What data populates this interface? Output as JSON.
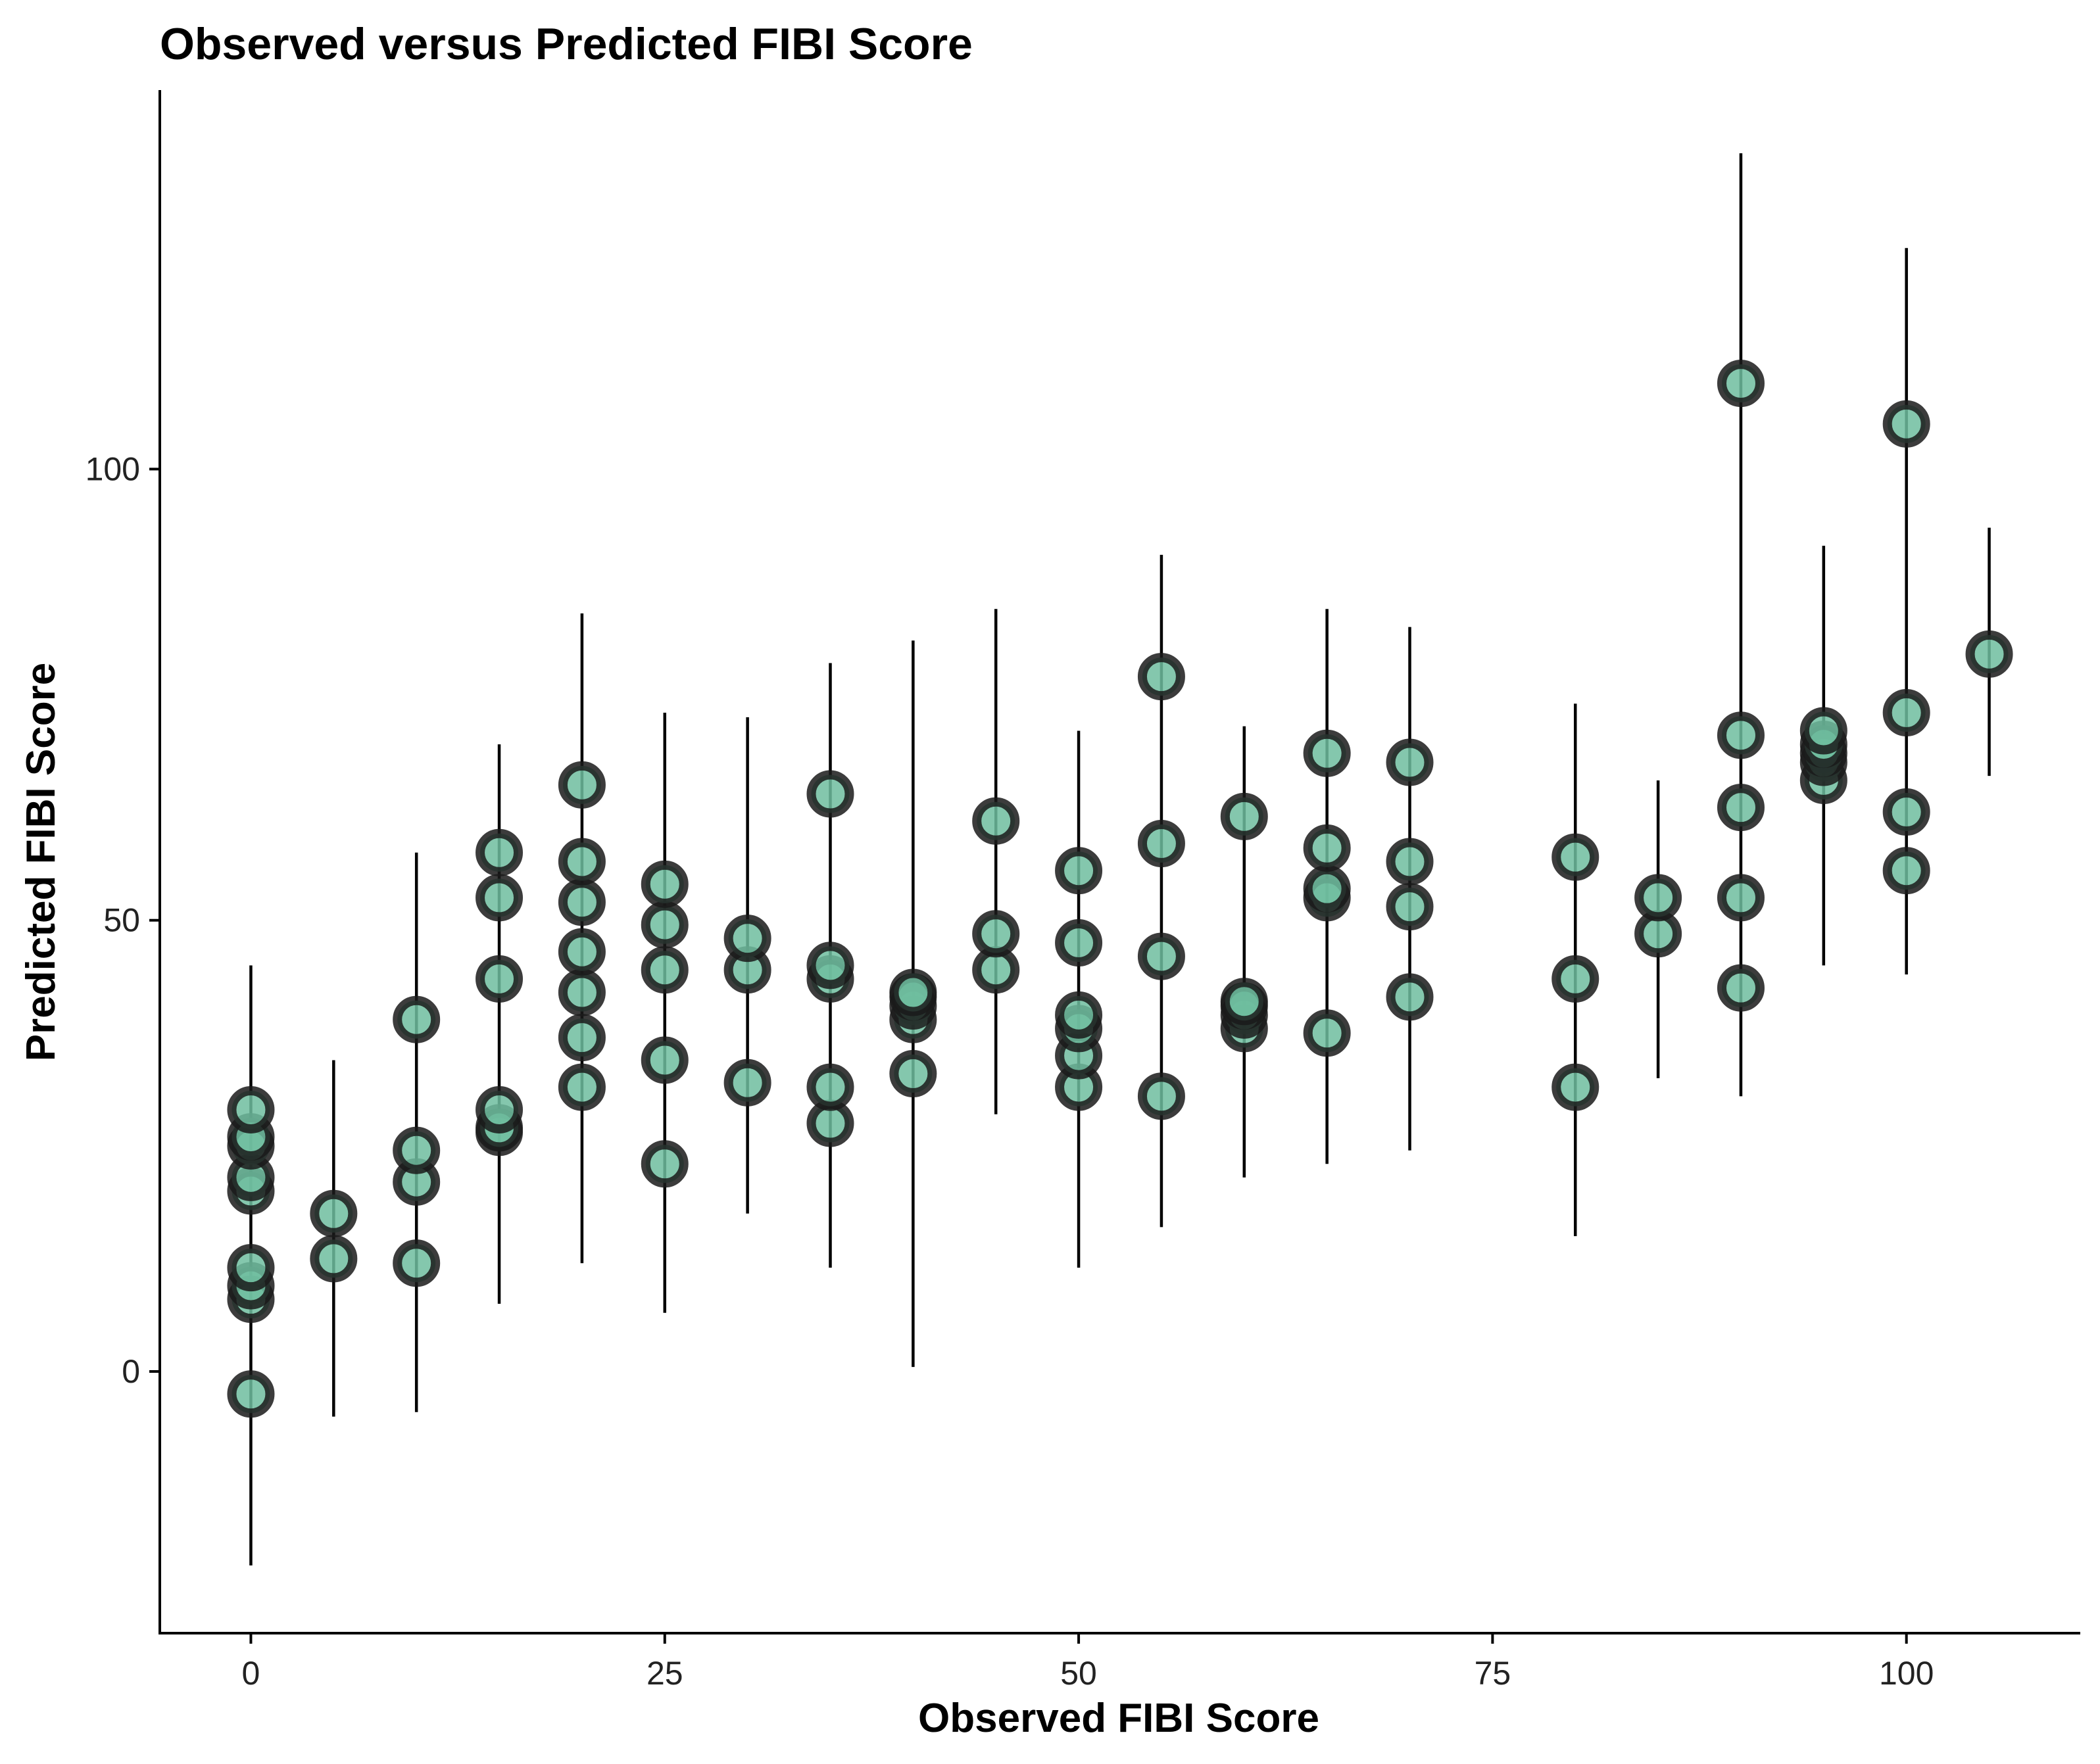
{
  "chart_data": {
    "type": "scatter",
    "title": "Observed versus Predicted FIBI Score",
    "xlabel": "Observed FIBI Score",
    "ylabel": "Predicted FIBI Score",
    "xlim": [
      -5.5,
      110.5
    ],
    "ylim": [
      -29,
      142
    ],
    "x_ticks": [
      0,
      25,
      50,
      75,
      100
    ],
    "y_ticks": [
      0,
      50,
      100
    ],
    "grid": false,
    "legend": "none",
    "point_fill": "#6fbd9f",
    "point_stroke": "#1a1a1a",
    "error_bars": [
      {
        "x": 0,
        "low": -21.5,
        "high": 45
      },
      {
        "x": 5,
        "low": -5,
        "high": 34.5
      },
      {
        "x": 10,
        "low": -4.5,
        "high": 57.5
      },
      {
        "x": 15,
        "low": 7.5,
        "high": 69.5
      },
      {
        "x": 20,
        "low": 12,
        "high": 84
      },
      {
        "x": 25,
        "low": 6.5,
        "high": 73
      },
      {
        "x": 30,
        "low": 17.5,
        "high": 72.5
      },
      {
        "x": 35,
        "low": 11.5,
        "high": 78.5
      },
      {
        "x": 40,
        "low": 0.5,
        "high": 81
      },
      {
        "x": 45,
        "low": 28.5,
        "high": 84.5
      },
      {
        "x": 50,
        "low": 11.5,
        "high": 71
      },
      {
        "x": 55,
        "low": 16,
        "high": 90.5
      },
      {
        "x": 60,
        "low": 21.5,
        "high": 71.5
      },
      {
        "x": 65,
        "low": 23,
        "high": 84.5
      },
      {
        "x": 70,
        "low": 24.5,
        "high": 82.5
      },
      {
        "x": 80,
        "low": 15,
        "high": 74
      },
      {
        "x": 85,
        "low": 32.5,
        "high": 65.5
      },
      {
        "x": 90,
        "low": 30.5,
        "high": 135
      },
      {
        "x": 95,
        "low": 45,
        "high": 91.5
      },
      {
        "x": 100,
        "low": 44,
        "high": 124.5
      },
      {
        "x": 105,
        "low": 66,
        "high": 93.5
      }
    ],
    "points": [
      {
        "x": 0,
        "y": -2.5
      },
      {
        "x": 0,
        "y": 8
      },
      {
        "x": 0,
        "y": 9.5
      },
      {
        "x": 0,
        "y": 11.5
      },
      {
        "x": 0,
        "y": 20
      },
      {
        "x": 0,
        "y": 21.5
      },
      {
        "x": 0,
        "y": 25
      },
      {
        "x": 0,
        "y": 26
      },
      {
        "x": 0,
        "y": 29
      },
      {
        "x": 5,
        "y": 12.5
      },
      {
        "x": 5,
        "y": 17.5
      },
      {
        "x": 10,
        "y": 12
      },
      {
        "x": 10,
        "y": 21
      },
      {
        "x": 10,
        "y": 24.5
      },
      {
        "x": 10,
        "y": 39
      },
      {
        "x": 15,
        "y": 26.5
      },
      {
        "x": 15,
        "y": 27
      },
      {
        "x": 15,
        "y": 29
      },
      {
        "x": 15,
        "y": 43.5
      },
      {
        "x": 15,
        "y": 52.5
      },
      {
        "x": 15,
        "y": 57.5
      },
      {
        "x": 20,
        "y": 31.5
      },
      {
        "x": 20,
        "y": 37
      },
      {
        "x": 20,
        "y": 42
      },
      {
        "x": 20,
        "y": 46.5
      },
      {
        "x": 20,
        "y": 52
      },
      {
        "x": 20,
        "y": 56.5
      },
      {
        "x": 20,
        "y": 65
      },
      {
        "x": 25,
        "y": 23
      },
      {
        "x": 25,
        "y": 34.5
      },
      {
        "x": 25,
        "y": 44.5
      },
      {
        "x": 25,
        "y": 49.5
      },
      {
        "x": 25,
        "y": 54
      },
      {
        "x": 30,
        "y": 32
      },
      {
        "x": 30,
        "y": 44.5
      },
      {
        "x": 30,
        "y": 48
      },
      {
        "x": 35,
        "y": 27.5
      },
      {
        "x": 35,
        "y": 31.5
      },
      {
        "x": 35,
        "y": 43.5
      },
      {
        "x": 35,
        "y": 45
      },
      {
        "x": 35,
        "y": 64
      },
      {
        "x": 40,
        "y": 33
      },
      {
        "x": 40,
        "y": 39
      },
      {
        "x": 40,
        "y": 40.5
      },
      {
        "x": 40,
        "y": 41.5
      },
      {
        "x": 40,
        "y": 42
      },
      {
        "x": 45,
        "y": 44.5
      },
      {
        "x": 45,
        "y": 48.5
      },
      {
        "x": 45,
        "y": 61
      },
      {
        "x": 50,
        "y": 31.5
      },
      {
        "x": 50,
        "y": 35
      },
      {
        "x": 50,
        "y": 38
      },
      {
        "x": 50,
        "y": 39.5
      },
      {
        "x": 50,
        "y": 47.5
      },
      {
        "x": 50,
        "y": 55.5
      },
      {
        "x": 55,
        "y": 30.5
      },
      {
        "x": 55,
        "y": 46
      },
      {
        "x": 55,
        "y": 58.5
      },
      {
        "x": 55,
        "y": 77
      },
      {
        "x": 60,
        "y": 38
      },
      {
        "x": 60,
        "y": 39.5
      },
      {
        "x": 60,
        "y": 40.5
      },
      {
        "x": 60,
        "y": 41
      },
      {
        "x": 60,
        "y": 61.5
      },
      {
        "x": 65,
        "y": 37.5
      },
      {
        "x": 65,
        "y": 52.5
      },
      {
        "x": 65,
        "y": 53.5
      },
      {
        "x": 65,
        "y": 58
      },
      {
        "x": 65,
        "y": 68.5
      },
      {
        "x": 70,
        "y": 41.5
      },
      {
        "x": 70,
        "y": 51.5
      },
      {
        "x": 70,
        "y": 56.5
      },
      {
        "x": 70,
        "y": 67.5
      },
      {
        "x": 80,
        "y": 31.5
      },
      {
        "x": 80,
        "y": 43.5
      },
      {
        "x": 80,
        "y": 57
      },
      {
        "x": 85,
        "y": 48.5
      },
      {
        "x": 85,
        "y": 52.5
      },
      {
        "x": 90,
        "y": 42.5
      },
      {
        "x": 90,
        "y": 52.5
      },
      {
        "x": 90,
        "y": 62.5
      },
      {
        "x": 90,
        "y": 70.5
      },
      {
        "x": 90,
        "y": 109.5
      },
      {
        "x": 95,
        "y": 65.5
      },
      {
        "x": 95,
        "y": 67.5
      },
      {
        "x": 95,
        "y": 68.5
      },
      {
        "x": 95,
        "y": 69.5
      },
      {
        "x": 95,
        "y": 71
      },
      {
        "x": 100,
        "y": 55.5
      },
      {
        "x": 100,
        "y": 62
      },
      {
        "x": 100,
        "y": 73
      },
      {
        "x": 100,
        "y": 105
      },
      {
        "x": 105,
        "y": 79.5
      }
    ]
  }
}
